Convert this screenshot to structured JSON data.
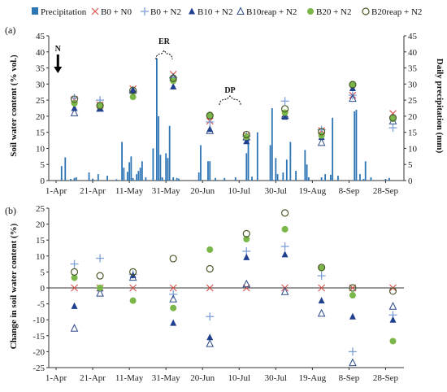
{
  "colors": {
    "precip": "#2e75b6",
    "B0_N0": "#d9534f",
    "B0_N2": "#7f9fd8",
    "B10_N2": "#1f3f8f",
    "B10reap_N2": "#2c4a8a",
    "B20_N2": "#7ab648",
    "B20reap_N2": "#4a5a2a",
    "axis": "#333333"
  },
  "legend": [
    "Precipitation",
    "B0 + N0",
    "B0 + N2",
    "B10 + N2",
    "B10reap + N2",
    "B20 + N2",
    "B20reap + N2"
  ],
  "chart_data": [
    {
      "type": "bar",
      "panel": "(a)",
      "ylabel": "Soil water content (% vol.)",
      "y2label": "Daily precipitation (mm)",
      "ylim": [
        0,
        45
      ],
      "y2lim": [
        0,
        45
      ],
      "x_ticks": [
        "1-Apr",
        "21-Apr",
        "11-May",
        "31-May",
        "20-Jun",
        "10-Jul",
        "30-Jul",
        "19-Aug",
        "8-Sep",
        "28-Sep"
      ],
      "x_tick_days": [
        0,
        20,
        40,
        60,
        80,
        100,
        120,
        140,
        160,
        180
      ],
      "y_ticks": [
        0,
        5,
        10,
        15,
        20,
        25,
        30,
        35,
        40,
        45
      ],
      "annotations": [
        {
          "text": "N",
          "day": 1
        },
        {
          "text": "ER",
          "day": 59
        },
        {
          "text": "DP",
          "day": 95
        }
      ],
      "precipitation": [
        [
          3,
          4.5
        ],
        [
          5,
          7.2
        ],
        [
          8,
          0.5
        ],
        [
          10,
          0.8
        ],
        [
          11,
          1
        ],
        [
          18,
          2.5
        ],
        [
          20,
          0.6
        ],
        [
          23,
          2
        ],
        [
          28,
          1.5
        ],
        [
          33,
          0.4
        ],
        [
          36,
          12
        ],
        [
          37,
          4
        ],
        [
          39,
          2.7
        ],
        [
          40,
          5.7
        ],
        [
          41,
          7.5
        ],
        [
          42,
          0.8
        ],
        [
          44,
          2
        ],
        [
          45,
          3
        ],
        [
          46,
          4
        ],
        [
          47,
          6
        ],
        [
          49,
          1
        ],
        [
          53,
          10
        ],
        [
          55,
          38
        ],
        [
          56,
          20
        ],
        [
          57,
          8
        ],
        [
          58,
          1
        ],
        [
          60,
          8.5
        ],
        [
          61,
          7
        ],
        [
          62,
          17
        ],
        [
          64,
          1
        ],
        [
          66,
          0.8
        ],
        [
          67,
          0.6
        ],
        [
          78,
          2.5
        ],
        [
          79,
          11
        ],
        [
          83,
          6
        ],
        [
          84,
          6
        ],
        [
          87,
          0.8
        ],
        [
          92,
          0.8
        ],
        [
          98,
          1
        ],
        [
          104,
          8.5
        ],
        [
          105,
          13
        ],
        [
          107,
          1.2
        ],
        [
          110,
          15
        ],
        [
          117,
          11
        ],
        [
          118,
          22.5
        ],
        [
          120,
          7
        ],
        [
          121,
          2
        ],
        [
          124,
          2.5
        ],
        [
          126,
          6.5
        ],
        [
          128,
          12
        ],
        [
          131,
          3
        ],
        [
          136,
          9.5
        ],
        [
          137,
          5
        ],
        [
          138,
          1
        ],
        [
          145,
          1
        ],
        [
          147,
          2
        ],
        [
          150,
          1.8
        ],
        [
          151,
          19.5
        ],
        [
          154,
          1.5
        ],
        [
          163,
          21.5
        ],
        [
          164,
          22
        ],
        [
          166,
          2
        ],
        [
          168,
          0.5
        ],
        [
          169,
          6
        ],
        [
          172,
          1
        ],
        [
          180,
          0.5
        ],
        [
          182,
          0.8
        ]
      ],
      "series": [
        {
          "name": "B0 + N0",
          "marker": "x",
          "x": [
            10,
            24,
            42,
            64,
            84,
            104,
            125,
            145,
            162,
            184
          ],
          "y": [
            25.2,
            23.5,
            28.5,
            33,
            18.5,
            14,
            20.7,
            15.5,
            26.5,
            20.8
          ]
        },
        {
          "name": "B0 + N2",
          "marker": "plus",
          "x": [
            10,
            24,
            42,
            64,
            84,
            104,
            125,
            145,
            162,
            184
          ],
          "y": [
            25.7,
            25,
            27.5,
            32,
            18.2,
            13.8,
            24.7,
            15.8,
            26.5,
            16.4
          ]
        },
        {
          "name": "B10 + N2",
          "marker": "tri",
          "x": [
            10,
            24,
            42,
            64,
            84,
            104,
            125,
            145,
            162,
            184
          ],
          "y": [
            22.5,
            22.5,
            28,
            29.2,
            16,
            12.2,
            19.8,
            13.5,
            28.7,
            19.5
          ]
        },
        {
          "name": "B10reap + N2",
          "marker": "tri-open",
          "x": [
            10,
            24,
            42,
            64,
            84,
            104,
            125,
            145,
            162,
            184
          ],
          "y": [
            21,
            22.4,
            28,
            32,
            15.5,
            13.5,
            20.2,
            11.8,
            25.5,
            18.5
          ]
        },
        {
          "name": "B20 + N2",
          "marker": "circle",
          "x": [
            10,
            24,
            42,
            64,
            84,
            104,
            125,
            145,
            162,
            184
          ],
          "y": [
            24,
            23.2,
            26,
            31,
            20.4,
            13.6,
            21.1,
            14,
            30,
            19.2
          ]
        },
        {
          "name": "B20reap + N2",
          "marker": "circle-open",
          "x": [
            10,
            24,
            42,
            64,
            84,
            104,
            125,
            145,
            162,
            184
          ],
          "y": [
            25.3,
            23.3,
            28,
            31.8,
            20.2,
            14.3,
            22.3,
            15.2,
            29.8,
            19.5
          ]
        }
      ]
    },
    {
      "type": "scatter",
      "panel": "(b)",
      "ylabel": "Change in soil water content (%)",
      "ylim": [
        -25,
        25
      ],
      "x_ticks": [
        "1-Apr",
        "21-Apr",
        "11-May",
        "31-May",
        "20-Jun",
        "10-Jul",
        "30-Jul",
        "19-Aug",
        "8-Sep",
        "28-Sep"
      ],
      "x_tick_days": [
        0,
        20,
        40,
        60,
        80,
        100,
        120,
        140,
        160,
        180
      ],
      "y_ticks": [
        -25,
        -20,
        -15,
        -10,
        -5,
        0,
        5,
        10,
        15,
        20,
        25
      ],
      "series": [
        {
          "name": "B0 + N0",
          "marker": "x",
          "x": [
            10,
            24,
            42,
            64,
            84,
            104,
            125,
            145,
            162,
            184
          ],
          "y": [
            0,
            0,
            0,
            0,
            0,
            0,
            0,
            0,
            0,
            0
          ]
        },
        {
          "name": "B0 + N2",
          "marker": "plus",
          "x": [
            10,
            24,
            42,
            64,
            84,
            104,
            125,
            145,
            162,
            184
          ],
          "y": [
            7.5,
            9.3,
            4.2,
            -2,
            -9,
            11.5,
            13,
            3.8,
            -20,
            -8.5
          ]
        },
        {
          "name": "B10 + N2",
          "marker": "tri",
          "x": [
            10,
            24,
            42,
            64,
            84,
            104,
            125,
            145,
            162,
            184
          ],
          "y": [
            -5.7,
            -0.2,
            4,
            -11,
            -15.5,
            9.6,
            10.5,
            -4,
            -9,
            -10
          ]
        },
        {
          "name": "B10reap + N2",
          "marker": "tri-open",
          "x": [
            10,
            24,
            42,
            64,
            84,
            104,
            125,
            145,
            162,
            184
          ],
          "y": [
            -12.7,
            -1.7,
            3.3,
            -3.5,
            -17.5,
            1.2,
            -1.2,
            -8,
            -23.5,
            -5.8
          ]
        },
        {
          "name": "B20 + N2",
          "marker": "circle",
          "x": [
            10,
            24,
            42,
            64,
            84,
            104,
            125,
            145,
            162,
            184
          ],
          "y": [
            3.2,
            0,
            -4,
            -6.3,
            12,
            15.3,
            18.4,
            6.2,
            -2.3,
            -16.7
          ]
        },
        {
          "name": "B20reap + N2",
          "marker": "circle-open",
          "x": [
            10,
            24,
            42,
            64,
            84,
            104,
            125,
            145,
            162,
            184
          ],
          "y": [
            5,
            3.8,
            5,
            9.2,
            6,
            17,
            23.5,
            6.4,
            0,
            -1
          ]
        }
      ]
    }
  ]
}
